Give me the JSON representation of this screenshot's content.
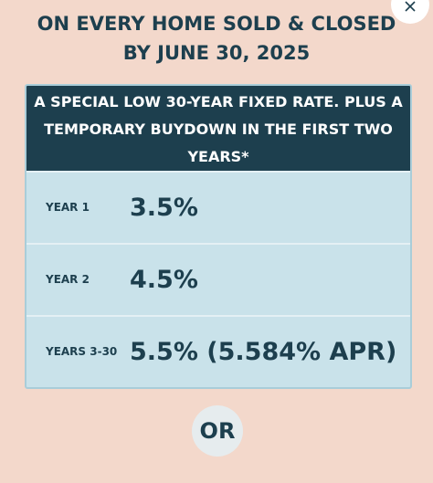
{
  "header": {
    "title_lines": [
      "ON EVERY HOME SOLD & CLOSED",
      "BY JUNE 30, 2025"
    ]
  },
  "table": {
    "heading_lines": [
      "A SPECIAL LOW 30-YEAR FIXED RATE. PLUS A",
      "TEMPORARY BUYDOWN IN THE FIRST TWO",
      "YEARS*"
    ],
    "rows": [
      [
        "YEAR 1",
        "3.5%"
      ],
      [
        "YEAR 2",
        "4.5%"
      ],
      [
        "YEARS 3-30",
        "5.5% (5.584% APR)"
      ]
    ]
  },
  "footer": {
    "divider": "OR"
  }
}
